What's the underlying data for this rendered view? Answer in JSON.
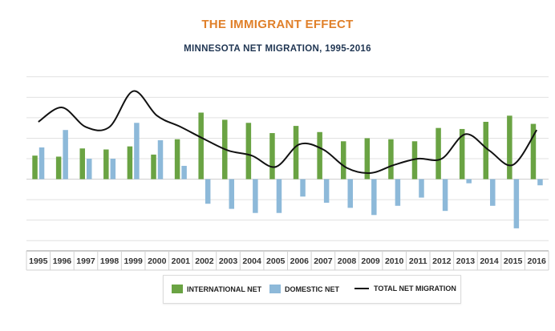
{
  "colors": {
    "title": "#e0802a",
    "subtitle": "#1f3552",
    "international": "#6aa343",
    "domestic": "#8db9d9",
    "total": "#111111",
    "grid": "#e1e1e1"
  },
  "chart_data": {
    "type": "bar",
    "title": "THE IMMIGRANT EFFECT",
    "subtitle": "MINNESOTA NET MIGRATION, 1995-2016",
    "categories": [
      "1995",
      "1996",
      "1997",
      "1998",
      "1999",
      "2000",
      "2001",
      "2002",
      "2003",
      "2004",
      "2005",
      "2006",
      "2007",
      "2008",
      "2009",
      "2010",
      "2011",
      "2012",
      "2013",
      "2014",
      "2015",
      "2016"
    ],
    "series": [
      {
        "name": "INTERNATIONAL NET",
        "kind": "bar",
        "values": [
          11.5,
          11,
          15,
          14.5,
          16,
          12,
          19.5,
          32.5,
          29,
          27.5,
          22.5,
          26,
          23,
          18.5,
          20,
          19.5,
          18.5,
          25,
          24.5,
          28,
          31,
          27
        ]
      },
      {
        "name": "DOMESTIC NET",
        "kind": "bar",
        "values": [
          15.5,
          24,
          10,
          10,
          27.5,
          19,
          6.5,
          -12,
          -14.5,
          -16.5,
          -16.5,
          -8.5,
          -11.5,
          -14,
          -17.5,
          -13,
          -9,
          -15.5,
          -2,
          -13,
          -24,
          -3
        ]
      },
      {
        "name": "TOTAL NET MIGRATION",
        "kind": "line",
        "values": [
          28,
          35,
          25.5,
          25.5,
          43,
          31,
          25.5,
          19.5,
          14,
          11.5,
          6,
          17,
          14.5,
          5.5,
          3,
          7,
          10,
          10,
          22,
          14,
          7,
          24
        ]
      }
    ],
    "ylim": [
      -35,
      55
    ],
    "grid": true,
    "legend_position": "bottom-center"
  }
}
